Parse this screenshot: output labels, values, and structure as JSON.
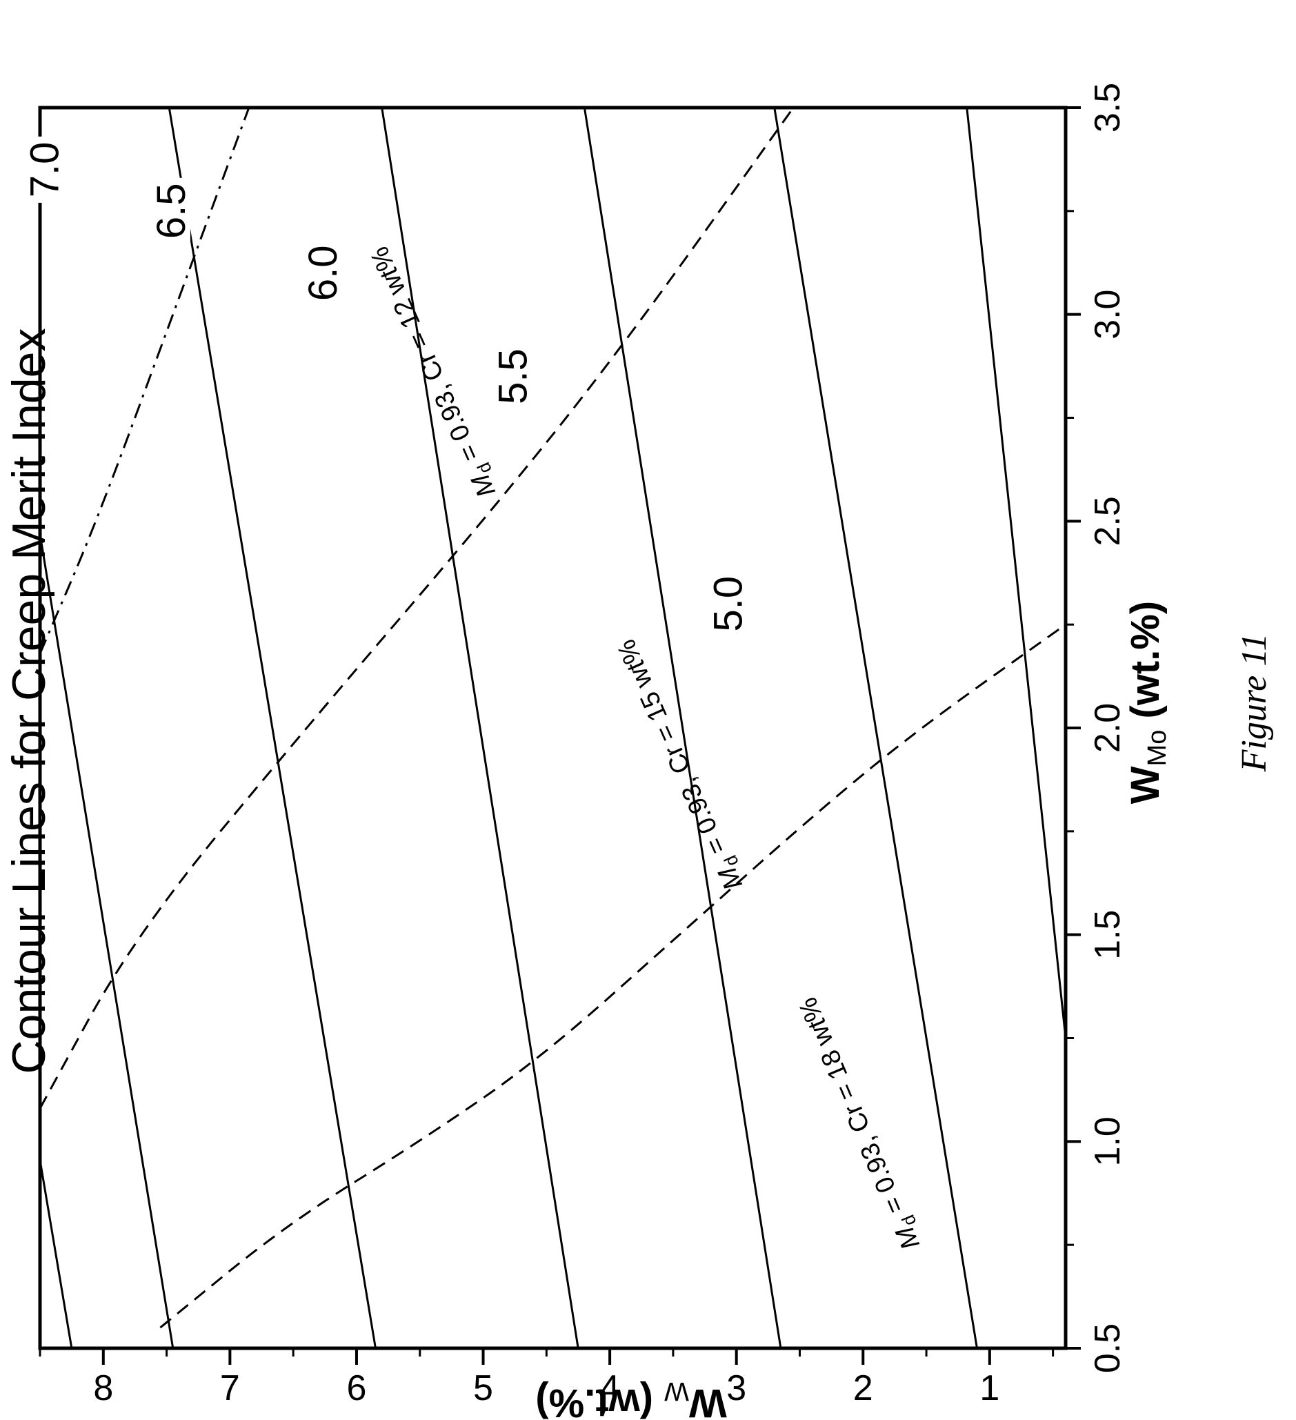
{
  "chart_data": {
    "type": "line",
    "title": "Contour Lines for Creep Merit Index",
    "xlabel": {
      "main": "W",
      "sub": "Mo",
      "unit": " (wt.%)"
    },
    "ylabel": {
      "main": "W",
      "sub": "W",
      "unit": " (wt.%)"
    },
    "xlim": [
      0.5,
      3.5
    ],
    "ylim": [
      0.4,
      8.5
    ],
    "x_ticks": [
      "0.5",
      "1.0",
      "1.5",
      "2.0",
      "2.5",
      "3.0",
      "3.5"
    ],
    "y_ticks": [
      "1",
      "2",
      "3",
      "4",
      "5",
      "6",
      "7",
      "8"
    ],
    "grid": false,
    "caption": "Figure 11",
    "contours": [
      {
        "label": "",
        "points": [
          [
            0.5,
            8.25
          ],
          [
            3.5,
            9.9
          ]
        ]
      },
      {
        "label": "7.0",
        "label_at": [
          3.35,
          8.4
        ],
        "points": [
          [
            1.2,
            8.5
          ],
          [
            3.5,
            9.78
          ]
        ]
      },
      {
        "label": "6.5",
        "label_at": [
          3.25,
          7.4
        ],
        "points": [
          [
            0.5,
            7.45
          ],
          [
            3.5,
            9.05
          ]
        ]
      },
      {
        "label": "6.0",
        "label_at": [
          3.1,
          6.2
        ],
        "points": [
          [
            0.5,
            5.85
          ],
          [
            3.5,
            7.48
          ]
        ]
      },
      {
        "label": "5.5",
        "label_at": [
          2.85,
          4.7
        ],
        "points": [
          [
            0.5,
            4.25
          ],
          [
            3.5,
            5.8
          ]
        ]
      },
      {
        "label": "5.0",
        "label_at": [
          2.3,
          3.0
        ],
        "points": [
          [
            0.5,
            2.65
          ],
          [
            3.5,
            4.2
          ]
        ]
      },
      {
        "label": "",
        "points": [
          [
            0.5,
            1.1
          ],
          [
            3.5,
            2.7
          ]
        ]
      },
      {
        "label": "",
        "points": [
          [
            1.25,
            0.4
          ],
          [
            3.5,
            1.18
          ]
        ]
      }
    ],
    "curves": [
      {
        "name": "M",
        "name_sub": "d",
        "name_rest": " = 0.93, Cr = 12 wt%",
        "style": "dashdot",
        "label_at": [
          2.57,
          4.9
        ],
        "label_angle": -24,
        "points": [
          [
            2.18,
            8.5
          ],
          [
            2.5,
            8.05
          ],
          [
            3.0,
            7.45
          ],
          [
            3.5,
            6.85
          ]
        ]
      },
      {
        "name": "M",
        "name_sub": "d",
        "name_rest": " = 0.93, Cr = 15 wt%",
        "style": "dashed",
        "label_at": [
          1.62,
          2.95
        ],
        "label_angle": -24,
        "points": [
          [
            1.08,
            8.5
          ],
          [
            1.5,
            7.75
          ],
          [
            2.0,
            6.4
          ],
          [
            2.5,
            5.0
          ],
          [
            2.9,
            3.95
          ],
          [
            3.5,
            2.55
          ]
        ]
      },
      {
        "name": "M",
        "name_sub": "d",
        "name_rest": " = 0.93, Cr = 18 wt%",
        "style": "dashed",
        "label_at": [
          0.75,
          1.55
        ],
        "label_angle": -23,
        "points": [
          [
            0.55,
            7.55
          ],
          [
            0.8,
            6.55
          ],
          [
            1.0,
            5.5
          ],
          [
            1.2,
            4.55
          ],
          [
            1.5,
            3.45
          ],
          [
            1.8,
            2.35
          ],
          [
            2.0,
            1.55
          ],
          [
            2.25,
            0.4
          ]
        ]
      }
    ]
  }
}
